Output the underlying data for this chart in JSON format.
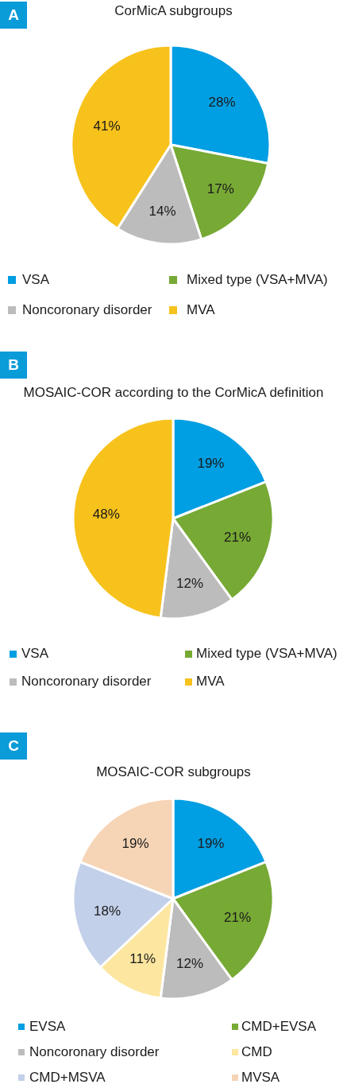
{
  "chart_data": [
    {
      "type": "pie",
      "title": "CorMicA subgroups",
      "annotations": [
        "A"
      ],
      "categories": [
        "VSA",
        "Mixed type (VSA+MVA)",
        "Noncoronary disorder",
        "MVA"
      ],
      "values": [
        28,
        17,
        14,
        41
      ],
      "colors": [
        "#009ee2",
        "#77a935",
        "#bcbcbc",
        "#f7c21c"
      ],
      "value_labels": [
        "28%",
        "17%",
        "14%",
        "41%"
      ],
      "legend": "bottom"
    },
    {
      "type": "pie",
      "title": "MOSAIC-COR according to the CorMicA definition",
      "annotations": [
        "B"
      ],
      "categories": [
        "VSA",
        "Mixed type (VSA+MVA)",
        "Noncoronary disorder",
        "MVA"
      ],
      "values": [
        19,
        21,
        12,
        48
      ],
      "colors": [
        "#009ee2",
        "#77a935",
        "#bcbcbc",
        "#f7c21c"
      ],
      "value_labels": [
        "19%",
        "21%",
        "12%",
        "48%"
      ],
      "legend": "bottom"
    },
    {
      "type": "pie",
      "title": "MOSAIC-COR subgroups",
      "annotations": [
        "C"
      ],
      "categories": [
        "EVSA",
        "CMD+EVSA",
        "Noncoronary disorder",
        "CMD",
        "CMD+MSVA",
        "MVSA"
      ],
      "values": [
        19,
        21,
        12,
        11,
        18,
        19
      ],
      "colors": [
        "#009ee2",
        "#77a935",
        "#bcbcbc",
        "#fde6a0",
        "#c3d0ea",
        "#f6d4b6"
      ],
      "value_labels": [
        "19%",
        "21%",
        "12%",
        "11%",
        "18%",
        "19%"
      ],
      "legend": "bottom"
    }
  ]
}
